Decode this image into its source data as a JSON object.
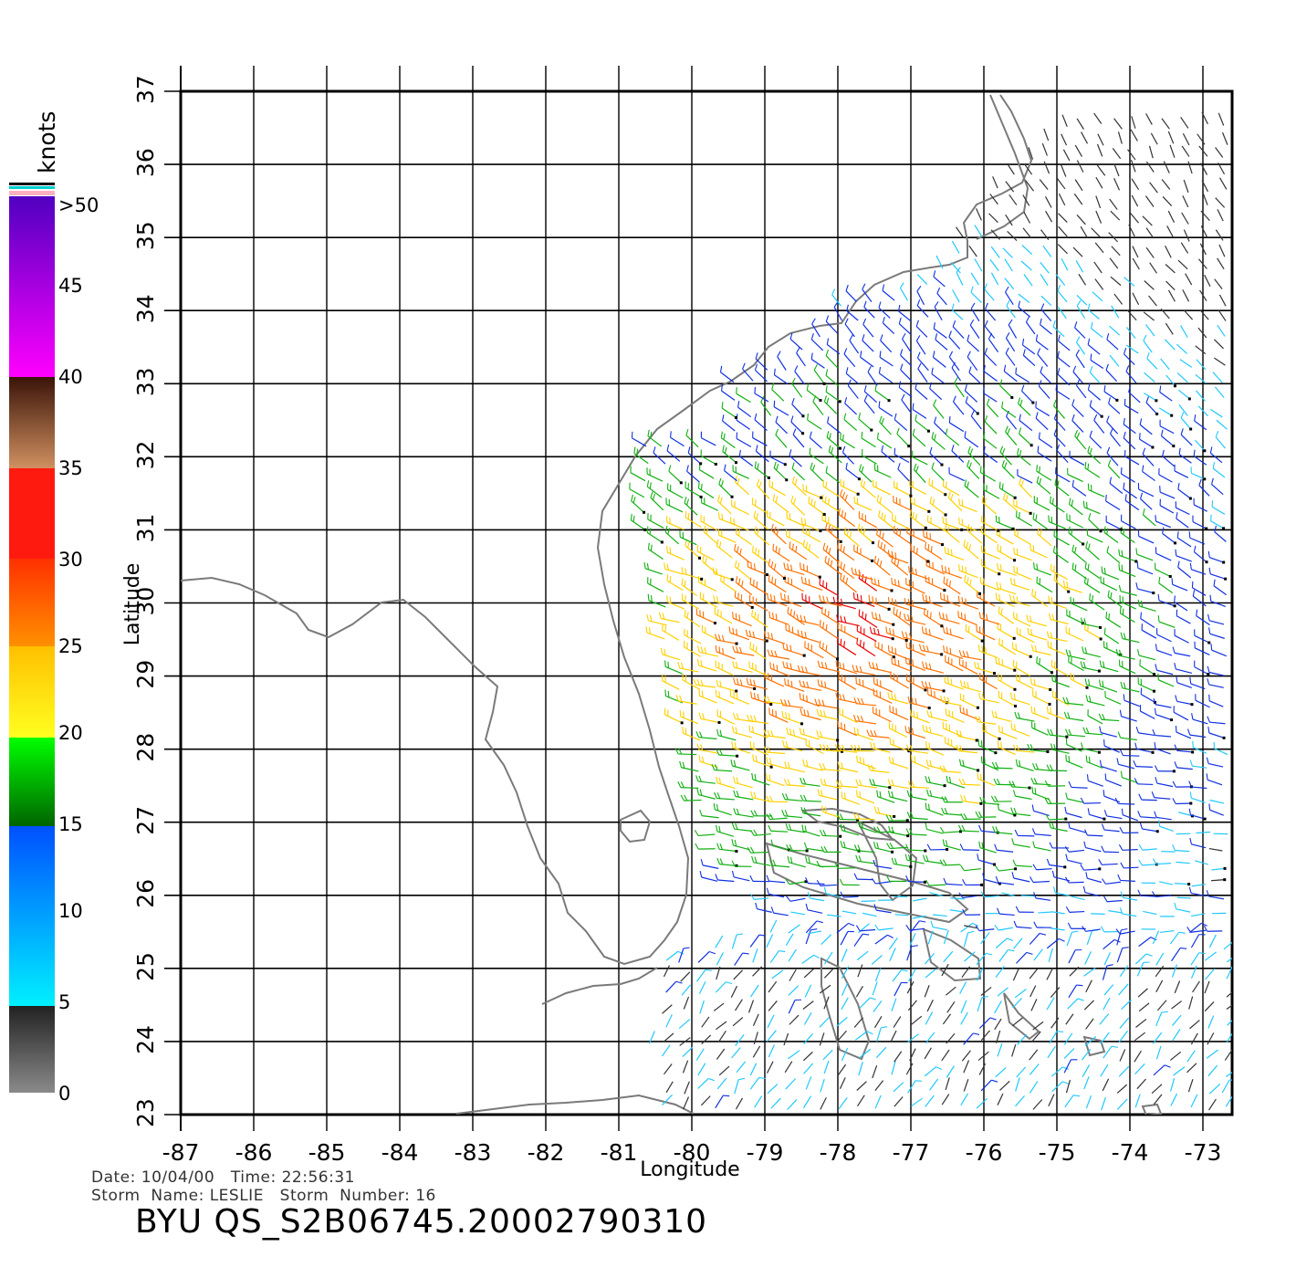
{
  "map": {
    "x_axis_label": "Longitude",
    "y_axis_label": "Latitude",
    "lon_range": [
      -87,
      -72.6
    ],
    "lat_range": [
      23,
      37
    ],
    "lon_ticks": [
      "-87",
      "-86",
      "-85",
      "-84",
      "-83",
      "-82",
      "-81",
      "-80",
      "-79",
      "-78",
      "-77",
      "-76",
      "-75",
      "-74",
      "-73"
    ],
    "lat_ticks": [
      "23",
      "24",
      "25",
      "26",
      "27",
      "28",
      "29",
      "30",
      "31",
      "32",
      "33",
      "34",
      "35",
      "36",
      "37"
    ],
    "grid": true,
    "coastline_color": "#7a7a7a"
  },
  "legend": {
    "unit": "knots",
    "placement": "left",
    "levels": [
      "0",
      "5",
      "10",
      "15",
      "20",
      "25",
      "30",
      "35",
      "40",
      "45",
      ">50"
    ],
    "colors": [
      "#808080",
      "#222222",
      "#00e8ff",
      "#0070ff",
      "#0000ff",
      "#006400",
      "#00ff00",
      "#ffff00",
      "#ffc000",
      "#ff8000",
      "#ff3000",
      "#ff0000",
      "#c08050",
      "#3a1a0a",
      "#ff00ff",
      "#a000c0",
      "#6000c0"
    ]
  },
  "footer": {
    "date_label": "Date:",
    "date": "10/04/00",
    "time_label": "Time:",
    "time": "22:56:31",
    "storm_name_label": "Storm  Name:",
    "storm_name": "LESLIE",
    "storm_number_label": "Storm  Number:",
    "storm_number": "16",
    "file_id": "BYU  QS_S2B06745.20002790310"
  }
}
